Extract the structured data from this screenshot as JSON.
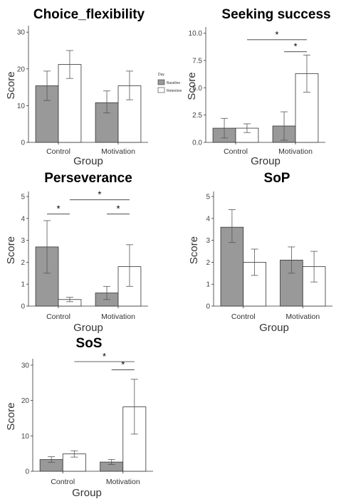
{
  "legend": {
    "title": "Day",
    "items": [
      {
        "label": "Baseline",
        "color": "#999999"
      },
      {
        "label": "Retention",
        "color": "#ffffff"
      }
    ]
  },
  "chart_data": [
    {
      "type": "bar",
      "title": "Choice_flexibility",
      "xlabel": "Group",
      "ylabel": "Score",
      "categories": [
        "Control",
        "Motivation"
      ],
      "series": [
        {
          "name": "Baseline",
          "values": [
            15.4,
            10.8
          ],
          "err_low": [
            11.4,
            8.0
          ],
          "err_high": [
            19.4,
            14.0
          ]
        },
        {
          "name": "Retention",
          "values": [
            21.2,
            15.4
          ],
          "err_low": [
            17.4,
            11.6
          ],
          "err_high": [
            25.0,
            19.4
          ]
        }
      ],
      "ylim": [
        0,
        31
      ],
      "yticks": [
        0,
        10,
        20,
        30
      ],
      "yticklabels": [
        "0",
        "10",
        "20",
        "30"
      ],
      "significance": []
    },
    {
      "type": "bar",
      "title": "Seeking success",
      "xlabel": "Group",
      "ylabel": "Score",
      "categories": [
        "Control",
        "Motivation"
      ],
      "series": [
        {
          "name": "Baseline",
          "values": [
            1.3,
            1.5
          ],
          "err_low": [
            0.4,
            0.2
          ],
          "err_high": [
            2.2,
            2.8
          ]
        },
        {
          "name": "Retention",
          "values": [
            1.3,
            6.3
          ],
          "err_low": [
            0.9,
            4.6
          ],
          "err_high": [
            1.7,
            8.0
          ]
        }
      ],
      "ylim": [
        0,
        10.3
      ],
      "yticks": [
        0,
        2.5,
        5,
        7.5,
        10
      ],
      "yticklabels": [
        "0.0",
        "2.5",
        "5.0",
        "7.5",
        "10.0"
      ],
      "significance": [
        {
          "from": [
            0,
            1
          ],
          "to": [
            1,
            1
          ],
          "y": 9.4,
          "label": "*"
        },
        {
          "from": [
            1,
            0
          ],
          "to": [
            1,
            1
          ],
          "y": 8.3,
          "label": "*"
        }
      ]
    },
    {
      "type": "bar",
      "title": "Perseverance",
      "xlabel": "Group",
      "ylabel": "Score",
      "categories": [
        "Control",
        "Motivation"
      ],
      "series": [
        {
          "name": "Baseline",
          "values": [
            2.7,
            0.6
          ],
          "err_low": [
            1.5,
            0.3
          ],
          "err_high": [
            3.9,
            0.9
          ]
        },
        {
          "name": "Retention",
          "values": [
            0.3,
            1.8
          ],
          "err_low": [
            0.2,
            0.9
          ],
          "err_high": [
            0.4,
            2.8
          ]
        }
      ],
      "ylim": [
        0,
        5.1
      ],
      "yticks": [
        0,
        1,
        2,
        3,
        4,
        5
      ],
      "yticklabels": [
        "0",
        "1",
        "2",
        "3",
        "4",
        "5"
      ],
      "significance": [
        {
          "from": [
            0,
            1
          ],
          "to": [
            1,
            1
          ],
          "y": 4.85,
          "label": "*"
        },
        {
          "from": [
            0,
            0
          ],
          "to": [
            0,
            1
          ],
          "y": 4.2,
          "label": "*"
        },
        {
          "from": [
            1,
            0
          ],
          "to": [
            1,
            1
          ],
          "y": 4.2,
          "label": "*"
        }
      ]
    },
    {
      "type": "bar",
      "title": "SoP",
      "xlabel": "Group",
      "ylabel": "Score",
      "categories": [
        "Control",
        "Motivation"
      ],
      "series": [
        {
          "name": "Baseline",
          "values": [
            3.6,
            2.1
          ],
          "err_low": [
            2.9,
            1.5
          ],
          "err_high": [
            4.4,
            2.7
          ]
        },
        {
          "name": "Retention",
          "values": [
            2.0,
            1.8
          ],
          "err_low": [
            1.4,
            1.1
          ],
          "err_high": [
            2.6,
            2.5
          ]
        }
      ],
      "ylim": [
        0,
        5.1
      ],
      "yticks": [
        0,
        1,
        2,
        3,
        4,
        5
      ],
      "yticklabels": [
        "0",
        "1",
        "2",
        "3",
        "4",
        "5"
      ],
      "significance": []
    },
    {
      "type": "bar",
      "title": "SoS",
      "xlabel": "Group",
      "ylabel": "Score",
      "categories": [
        "Control",
        "Motivation"
      ],
      "series": [
        {
          "name": "Baseline",
          "values": [
            3.3,
            2.6
          ],
          "err_low": [
            2.5,
            1.9
          ],
          "err_high": [
            4.1,
            3.3
          ]
        },
        {
          "name": "Retention",
          "values": [
            4.9,
            18.2
          ],
          "err_low": [
            4.0,
            10.5
          ],
          "err_high": [
            5.8,
            26.0
          ]
        }
      ],
      "ylim": [
        0,
        31
      ],
      "yticks": [
        0,
        10,
        20,
        30
      ],
      "yticklabels": [
        "0",
        "10",
        "20",
        "30"
      ],
      "significance": [
        {
          "from": [
            0,
            1
          ],
          "to": [
            1,
            1
          ],
          "y": 31,
          "label": "*"
        },
        {
          "from": [
            1,
            0
          ],
          "to": [
            1,
            1
          ],
          "y": 28.7,
          "label": "*"
        }
      ]
    }
  ]
}
